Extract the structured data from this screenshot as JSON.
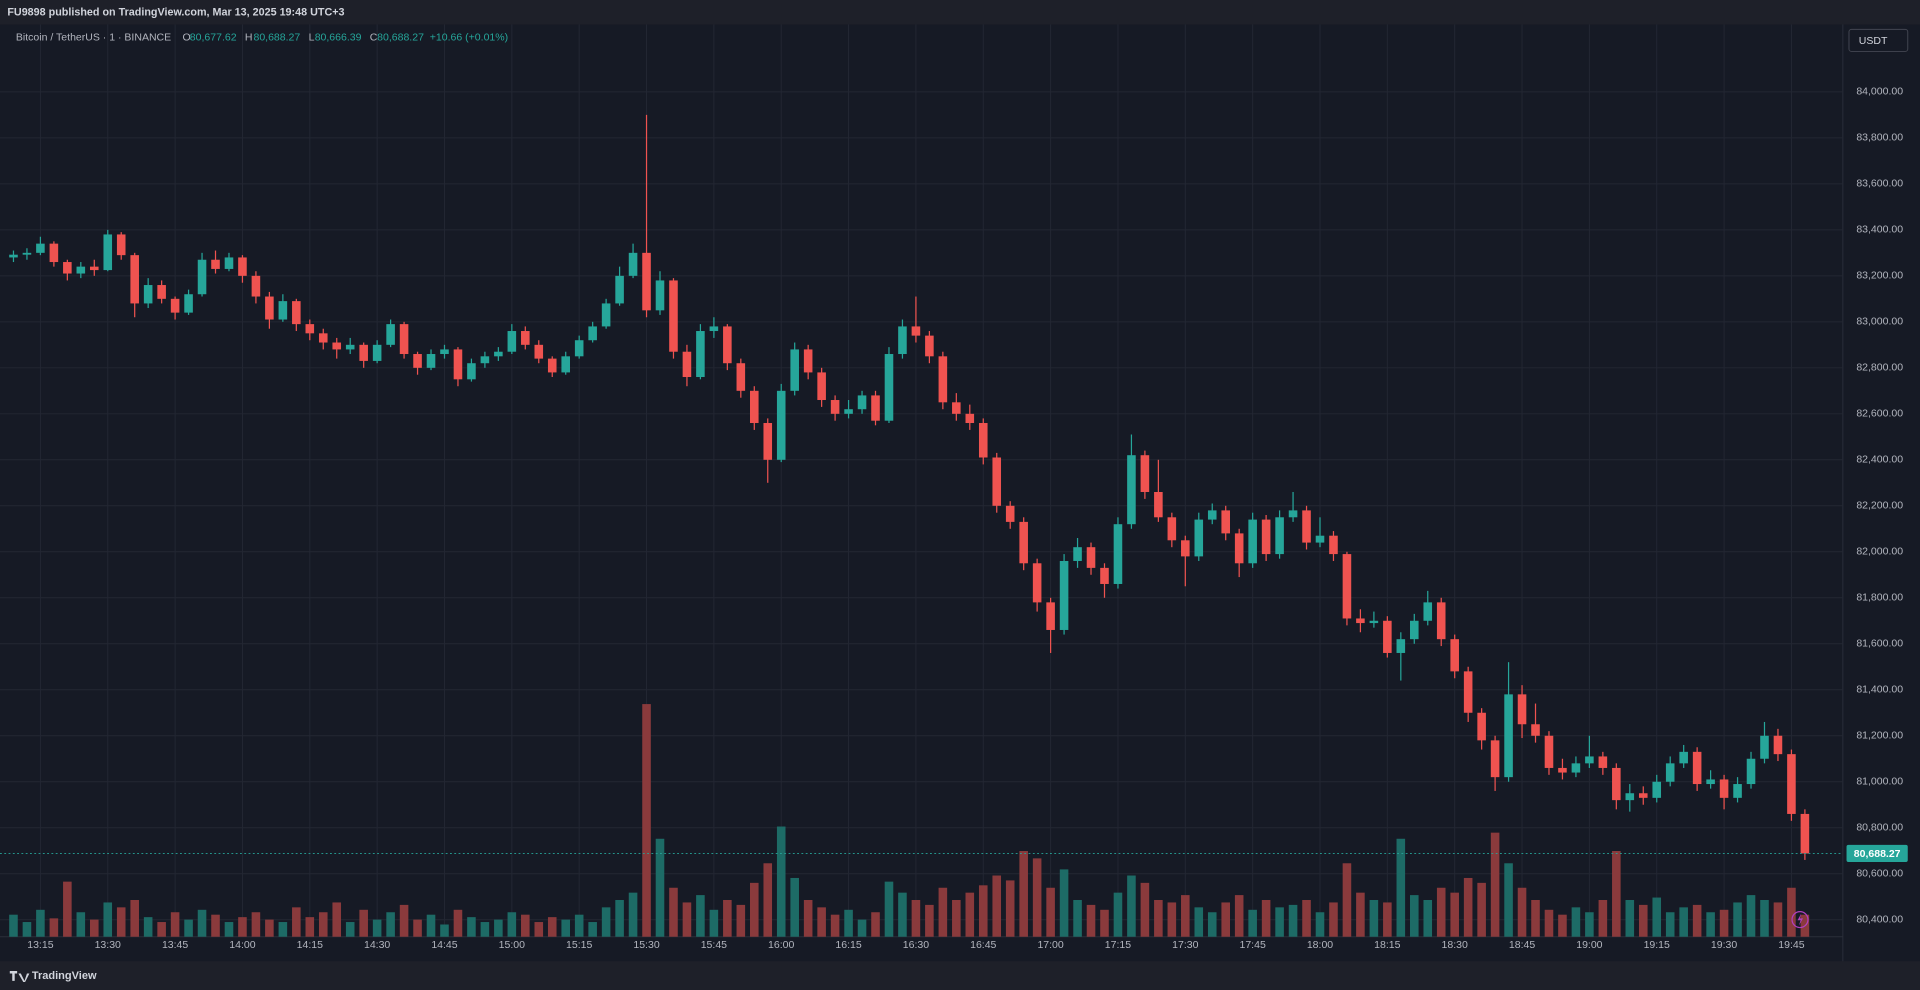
{
  "header": {
    "title": "FU9898 published on TradingView.com, Mar 13, 2025 19:48 UTC+3"
  },
  "footer": {
    "brand": "TradingView"
  },
  "chart_data": {
    "type": "candlestick",
    "symbol": "Bitcoin / TetherUS · 1 · BINANCE",
    "legend": {
      "open_label": "O",
      "open": {
        "value": 80677.62,
        "label": "80,677.62"
      },
      "high_label": "H",
      "high": {
        "value": 80688.27,
        "label": "80,688.27"
      },
      "low_label": "L",
      "low": {
        "value": 80666.39,
        "label": "80,666.39"
      },
      "close_label": "C",
      "close": {
        "value": 80688.27,
        "label": "80,688.27"
      },
      "change": "+10.66 (+0.01%)"
    },
    "currency": "USDT",
    "last_price": {
      "value": 80688.27,
      "label": "80,688.27"
    },
    "up_color": "#26a69a",
    "down_color": "#ef5350",
    "volume_up_color": "#1d6b66",
    "volume_down_color": "#8a3a3c",
    "grid": true,
    "ylim": [
      80326,
      84293
    ],
    "yticks": [
      {
        "value": 80400,
        "label": "80,400.00"
      },
      {
        "value": 80600,
        "label": "80,600.00"
      },
      {
        "value": 80800,
        "label": "80,800.00"
      },
      {
        "value": 81000,
        "label": "81,000.00"
      },
      {
        "value": 81200,
        "label": "81,200.00"
      },
      {
        "value": 81400,
        "label": "81,400.00"
      },
      {
        "value": 81600,
        "label": "81,600.00"
      },
      {
        "value": 81800,
        "label": "81,800.00"
      },
      {
        "value": 82000,
        "label": "82,000.00"
      },
      {
        "value": 82200,
        "label": "82,200.00"
      },
      {
        "value": 82400,
        "label": "82,400.00"
      },
      {
        "value": 82600,
        "label": "82,600.00"
      },
      {
        "value": 82800,
        "label": "82,800.00"
      },
      {
        "value": 83000,
        "label": "83,000.00"
      },
      {
        "value": 83200,
        "label": "83,200.00"
      },
      {
        "value": 83400,
        "label": "83,400.00"
      },
      {
        "value": 83600,
        "label": "83,600.00"
      },
      {
        "value": 83800,
        "label": "83,800.00"
      },
      {
        "value": 84000,
        "label": "84,000.00"
      }
    ],
    "volume_lim": [
      0,
      250
    ],
    "x": [
      null,
      null,
      "13:15",
      null,
      null,
      null,
      null,
      "13:30",
      null,
      null,
      null,
      null,
      "13:45",
      null,
      null,
      null,
      null,
      "14:00",
      null,
      null,
      null,
      null,
      "14:15",
      null,
      null,
      null,
      null,
      "14:30",
      null,
      null,
      null,
      null,
      "14:45",
      null,
      null,
      null,
      null,
      "15:00",
      null,
      null,
      null,
      null,
      "15:15",
      null,
      null,
      null,
      null,
      "15:30",
      null,
      null,
      null,
      null,
      "15:45",
      null,
      null,
      null,
      null,
      "16:00",
      null,
      null,
      null,
      null,
      "16:15",
      null,
      null,
      null,
      null,
      "16:30",
      null,
      null,
      null,
      null,
      "16:45",
      null,
      null,
      null,
      null,
      "17:00",
      null,
      null,
      null,
      null,
      "17:15",
      null,
      null,
      null,
      null,
      "17:30",
      null,
      null,
      null,
      null,
      "17:45",
      null,
      null,
      null,
      null,
      "18:00",
      null,
      null,
      null,
      null,
      "18:15",
      null,
      null,
      null,
      null,
      "18:30",
      null,
      null,
      null,
      null,
      "18:45",
      null,
      null,
      null,
      null,
      "19:00",
      null,
      null,
      null,
      null,
      "19:15",
      null,
      null,
      null,
      null,
      "19:30",
      null,
      null,
      null,
      null,
      "19:45",
      null
    ],
    "ohlc": [
      [
        83280,
        83310,
        83260,
        83292
      ],
      [
        83292,
        83320,
        83270,
        83300
      ],
      [
        83300,
        83370,
        83290,
        83340
      ],
      [
        83340,
        83350,
        83240,
        83260
      ],
      [
        83260,
        83270,
        83180,
        83210
      ],
      [
        83210,
        83260,
        83190,
        83240
      ],
      [
        83240,
        83270,
        83200,
        83225
      ],
      [
        83225,
        83400,
        83220,
        83380
      ],
      [
        83380,
        83390,
        83270,
        83290
      ],
      [
        83290,
        83300,
        83020,
        83080
      ],
      [
        83080,
        83190,
        83060,
        83160
      ],
      [
        83160,
        83180,
        83080,
        83100
      ],
      [
        83100,
        83110,
        83010,
        83040
      ],
      [
        83040,
        83140,
        83030,
        83120
      ],
      [
        83120,
        83300,
        83110,
        83270
      ],
      [
        83270,
        83310,
        83210,
        83230
      ],
      [
        83230,
        83300,
        83220,
        83280
      ],
      [
        83280,
        83290,
        83170,
        83200
      ],
      [
        83200,
        83220,
        83080,
        83110
      ],
      [
        83110,
        83130,
        82970,
        83010
      ],
      [
        83010,
        83120,
        83000,
        83090
      ],
      [
        83090,
        83100,
        82960,
        82990
      ],
      [
        82990,
        83010,
        82920,
        82950
      ],
      [
        82950,
        82970,
        82880,
        82910
      ],
      [
        82910,
        82930,
        82840,
        82880
      ],
      [
        82880,
        82930,
        82860,
        82900
      ],
      [
        82900,
        82910,
        82800,
        82830
      ],
      [
        82830,
        82920,
        82820,
        82900
      ],
      [
        82900,
        83010,
        82890,
        82990
      ],
      [
        82990,
        83000,
        82840,
        82860
      ],
      [
        82860,
        82870,
        82770,
        82800
      ],
      [
        82800,
        82880,
        82790,
        82860
      ],
      [
        82860,
        82900,
        82840,
        82880
      ],
      [
        82880,
        82890,
        82720,
        82750
      ],
      [
        82750,
        82840,
        82740,
        82820
      ],
      [
        82820,
        82870,
        82800,
        82850
      ],
      [
        82850,
        82890,
        82830,
        82870
      ],
      [
        82870,
        82990,
        82860,
        82960
      ],
      [
        82960,
        82980,
        82880,
        82900
      ],
      [
        82900,
        82920,
        82820,
        82840
      ],
      [
        82840,
        82850,
        82760,
        82780
      ],
      [
        82780,
        82870,
        82770,
        82850
      ],
      [
        82850,
        82940,
        82840,
        82920
      ],
      [
        82920,
        83000,
        82910,
        82980
      ],
      [
        82980,
        83100,
        82970,
        83080
      ],
      [
        83080,
        83240,
        83070,
        83200
      ],
      [
        83200,
        83340,
        83190,
        83300
      ],
      [
        83300,
        83900,
        83020,
        83050
      ],
      [
        83050,
        83220,
        83030,
        83180
      ],
      [
        83180,
        83190,
        82840,
        82870
      ],
      [
        82870,
        82900,
        82720,
        82760
      ],
      [
        82760,
        82990,
        82750,
        82960
      ],
      [
        82960,
        83020,
        82930,
        82980
      ],
      [
        82980,
        82990,
        82790,
        82820
      ],
      [
        82820,
        82840,
        82670,
        82700
      ],
      [
        82700,
        82720,
        82530,
        82560
      ],
      [
        82560,
        82580,
        82300,
        82400
      ],
      [
        82400,
        82730,
        82390,
        82700
      ],
      [
        82700,
        82910,
        82680,
        82880
      ],
      [
        82880,
        82900,
        82750,
        82780
      ],
      [
        82780,
        82800,
        82630,
        82660
      ],
      [
        82660,
        82680,
        82570,
        82600
      ],
      [
        82600,
        82660,
        82580,
        82620
      ],
      [
        82620,
        82700,
        82600,
        82680
      ],
      [
        82680,
        82700,
        82550,
        82570
      ],
      [
        82570,
        82890,
        82560,
        82860
      ],
      [
        82860,
        83010,
        82840,
        82980
      ],
      [
        82980,
        83110,
        82910,
        82940
      ],
      [
        82940,
        82960,
        82820,
        82850
      ],
      [
        82850,
        82870,
        82620,
        82650
      ],
      [
        82650,
        82690,
        82570,
        82600
      ],
      [
        82600,
        82640,
        82530,
        82560
      ],
      [
        82560,
        82580,
        82380,
        82410
      ],
      [
        82410,
        82430,
        82170,
        82200
      ],
      [
        82200,
        82220,
        82100,
        82130
      ],
      [
        82130,
        82150,
        81920,
        81950
      ],
      [
        81950,
        81970,
        81740,
        81780
      ],
      [
        81780,
        81800,
        81560,
        81660
      ],
      [
        81660,
        81990,
        81640,
        81960
      ],
      [
        81960,
        82060,
        81930,
        82020
      ],
      [
        82020,
        82040,
        81900,
        81930
      ],
      [
        81930,
        81950,
        81800,
        81860
      ],
      [
        81860,
        82150,
        81840,
        82120
      ],
      [
        82120,
        82510,
        82100,
        82420
      ],
      [
        82420,
        82440,
        82230,
        82260
      ],
      [
        82260,
        82400,
        82130,
        82150
      ],
      [
        82150,
        82170,
        82020,
        82050
      ],
      [
        82050,
        82070,
        81850,
        81980
      ],
      [
        81980,
        82170,
        81960,
        82140
      ],
      [
        82140,
        82210,
        82120,
        82180
      ],
      [
        82180,
        82200,
        82050,
        82080
      ],
      [
        82080,
        82100,
        81890,
        81950
      ],
      [
        81950,
        82170,
        81930,
        82140
      ],
      [
        82140,
        82160,
        81960,
        81990
      ],
      [
        81990,
        82180,
        81970,
        82150
      ],
      [
        82150,
        82260,
        82130,
        82180
      ],
      [
        82180,
        82200,
        82010,
        82040
      ],
      [
        82040,
        82150,
        82020,
        82070
      ],
      [
        82070,
        82090,
        81960,
        81990
      ],
      [
        81990,
        82000,
        81680,
        81710
      ],
      [
        81710,
        81750,
        81650,
        81690
      ],
      [
        81690,
        81740,
        81670,
        81700
      ],
      [
        81700,
        81720,
        81540,
        81560
      ],
      [
        81560,
        81650,
        81440,
        81620
      ],
      [
        81620,
        81730,
        81600,
        81700
      ],
      [
        81700,
        81830,
        81680,
        81780
      ],
      [
        81780,
        81800,
        81590,
        81620
      ],
      [
        81620,
        81640,
        81450,
        81480
      ],
      [
        81480,
        81500,
        81260,
        81300
      ],
      [
        81300,
        81320,
        81140,
        81180
      ],
      [
        81180,
        81200,
        80960,
        81020
      ],
      [
        81020,
        81520,
        81000,
        81380
      ],
      [
        81380,
        81420,
        81190,
        81250
      ],
      [
        81250,
        81340,
        81170,
        81200
      ],
      [
        81200,
        81220,
        81030,
        81060
      ],
      [
        81060,
        81100,
        81010,
        81040
      ],
      [
        81040,
        81110,
        81020,
        81080
      ],
      [
        81080,
        81200,
        81060,
        81110
      ],
      [
        81110,
        81130,
        81030,
        81060
      ],
      [
        81060,
        81080,
        80880,
        80920
      ],
      [
        80920,
        80990,
        80870,
        80950
      ],
      [
        80950,
        80980,
        80900,
        80930
      ],
      [
        80930,
        81030,
        80910,
        81000
      ],
      [
        81000,
        81110,
        80980,
        81080
      ],
      [
        81080,
        81160,
        81060,
        81130
      ],
      [
        81130,
        81150,
        80960,
        80990
      ],
      [
        80990,
        81050,
        80970,
        81010
      ],
      [
        81010,
        81030,
        80880,
        80930
      ],
      [
        80930,
        81020,
        80910,
        80990
      ],
      [
        80990,
        81130,
        80970,
        81100
      ],
      [
        81100,
        81260,
        81080,
        81200
      ],
      [
        81200,
        81230,
        81090,
        81120
      ],
      [
        81120,
        81140,
        80830,
        80860
      ],
      [
        80860,
        80880,
        80660,
        80688
      ]
    ],
    "volume": [
      18,
      12,
      22,
      15,
      45,
      20,
      14,
      28,
      24,
      30,
      16,
      12,
      20,
      14,
      22,
      18,
      12,
      16,
      20,
      14,
      12,
      24,
      16,
      20,
      28,
      12,
      22,
      14,
      20,
      26,
      14,
      18,
      10,
      22,
      16,
      12,
      14,
      20,
      18,
      12,
      16,
      14,
      18,
      12,
      24,
      30,
      36,
      190,
      80,
      40,
      28,
      34,
      22,
      30,
      26,
      44,
      60,
      90,
      48,
      30,
      24,
      18,
      22,
      14,
      20,
      45,
      36,
      30,
      26,
      40,
      30,
      36,
      42,
      50,
      46,
      70,
      64,
      40,
      55,
      30,
      26,
      22,
      36,
      50,
      44,
      30,
      28,
      34,
      24,
      20,
      28,
      34,
      22,
      30,
      24,
      26,
      30,
      20,
      28,
      60,
      36,
      30,
      28,
      80,
      34,
      30,
      40,
      36,
      48,
      44,
      85,
      60,
      40,
      30,
      22,
      18,
      24,
      20,
      30,
      70,
      30,
      26,
      32,
      20,
      24,
      26,
      20,
      22,
      28,
      34,
      30,
      28,
      40,
      18
    ]
  }
}
